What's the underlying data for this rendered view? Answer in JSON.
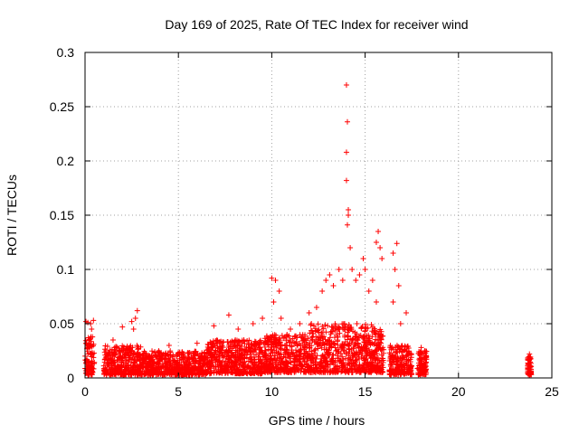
{
  "chart_data": {
    "type": "scatter",
    "title": "Day 169 of 2025, Rate Of TEC Index for receiver wind",
    "xlabel": "GPS time / hours",
    "ylabel": "ROTI / TECUs",
    "xlim": [
      0,
      25
    ],
    "ylim": [
      0,
      0.3
    ],
    "x_ticks": [
      "0",
      "5",
      "10",
      "15",
      "20",
      "25"
    ],
    "y_ticks": [
      "0",
      "0.05",
      "0.1",
      "0.15",
      "0.2",
      "0.25",
      "0.3"
    ],
    "grid": true,
    "marker": "+",
    "color": "#ff0000",
    "clusters": [
      {
        "x": [
          0.0,
          0.5
        ],
        "ymin": 0.003,
        "ymax": 0.038
      },
      {
        "x": [
          1.0,
          3.0
        ],
        "ymin": 0.003,
        "ymax": 0.03
      },
      {
        "x": [
          3.0,
          6.5
        ],
        "ymin": 0.003,
        "ymax": 0.025
      },
      {
        "x": [
          6.5,
          9.5
        ],
        "ymin": 0.004,
        "ymax": 0.035
      },
      {
        "x": [
          9.5,
          12.0
        ],
        "ymin": 0.005,
        "ymax": 0.04
      },
      {
        "x": [
          12.0,
          15.5
        ],
        "ymin": 0.005,
        "ymax": 0.05
      },
      {
        "x": [
          15.5,
          16.0
        ],
        "ymin": 0.005,
        "ymax": 0.045
      },
      {
        "x": [
          16.3,
          17.5
        ],
        "ymin": 0.003,
        "ymax": 0.03
      },
      {
        "x": [
          17.8,
          18.3
        ],
        "ymin": 0.003,
        "ymax": 0.025
      },
      {
        "x": [
          23.7,
          23.9
        ],
        "ymin": 0.003,
        "ymax": 0.02
      }
    ],
    "points": [
      [
        0.05,
        0.052
      ],
      [
        0.15,
        0.051
      ],
      [
        0.3,
        0.05
      ],
      [
        0.45,
        0.053
      ],
      [
        0.35,
        0.045
      ],
      [
        1.5,
        0.035
      ],
      [
        2.0,
        0.047
      ],
      [
        2.5,
        0.052
      ],
      [
        2.7,
        0.055
      ],
      [
        2.8,
        0.062
      ],
      [
        2.6,
        0.045
      ],
      [
        4.5,
        0.03
      ],
      [
        6.0,
        0.032
      ],
      [
        6.9,
        0.048
      ],
      [
        7.7,
        0.058
      ],
      [
        8.2,
        0.045
      ],
      [
        9.0,
        0.05
      ],
      [
        9.5,
        0.055
      ],
      [
        10.0,
        0.092
      ],
      [
        10.2,
        0.09
      ],
      [
        10.1,
        0.07
      ],
      [
        10.4,
        0.08
      ],
      [
        10.5,
        0.055
      ],
      [
        11.0,
        0.045
      ],
      [
        11.5,
        0.05
      ],
      [
        12.0,
        0.06
      ],
      [
        12.4,
        0.065
      ],
      [
        12.7,
        0.08
      ],
      [
        12.9,
        0.09
      ],
      [
        13.1,
        0.095
      ],
      [
        13.3,
        0.085
      ],
      [
        13.6,
        0.1
      ],
      [
        13.8,
        0.09
      ],
      [
        14.0,
        0.27
      ],
      [
        14.05,
        0.236
      ],
      [
        14.0,
        0.208
      ],
      [
        14.0,
        0.182
      ],
      [
        14.1,
        0.155
      ],
      [
        14.1,
        0.15
      ],
      [
        14.05,
        0.141
      ],
      [
        14.2,
        0.12
      ],
      [
        14.3,
        0.1
      ],
      [
        14.5,
        0.09
      ],
      [
        14.7,
        0.095
      ],
      [
        14.9,
        0.11
      ],
      [
        15.0,
        0.1
      ],
      [
        15.2,
        0.08
      ],
      [
        15.4,
        0.09
      ],
      [
        15.6,
        0.125
      ],
      [
        15.7,
        0.135
      ],
      [
        15.8,
        0.12
      ],
      [
        15.9,
        0.11
      ],
      [
        15.6,
        0.07
      ],
      [
        16.5,
        0.115
      ],
      [
        16.7,
        0.124
      ],
      [
        16.6,
        0.1
      ],
      [
        16.8,
        0.085
      ],
      [
        16.5,
        0.07
      ],
      [
        17.2,
        0.06
      ],
      [
        16.9,
        0.05
      ],
      [
        18.0,
        0.028
      ],
      [
        18.2,
        0.025
      ],
      [
        23.8,
        0.022
      ]
    ]
  }
}
